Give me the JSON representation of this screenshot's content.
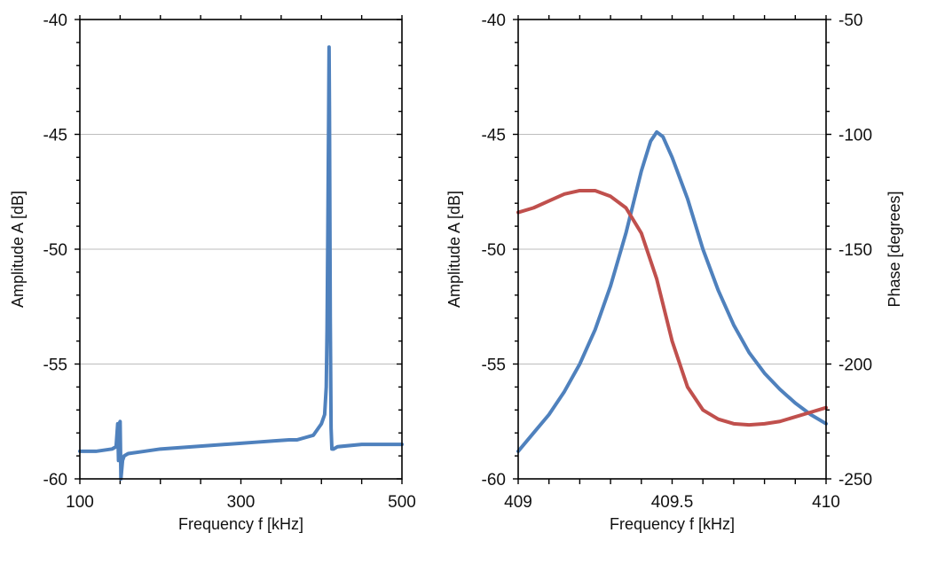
{
  "chart_data": [
    {
      "type": "line",
      "xlabel": "Frequency  f [kHz]",
      "ylabel": "Amplitude  A [dB]",
      "xlim": [
        100,
        500
      ],
      "ylim": [
        -60,
        -40
      ],
      "xticks": [
        100,
        300,
        500
      ],
      "yticks": [
        -60,
        -55,
        -50,
        -45,
        -40
      ],
      "xtick_labels": [
        "100",
        "300",
        "500"
      ],
      "ytick_labels": [
        "-60",
        "-55",
        "-50",
        "-45",
        "-40"
      ],
      "grid": "horizontal",
      "series": [
        {
          "color": "#4f81bd",
          "x": [
            100,
            120,
            140,
            145,
            147,
            148,
            149,
            150,
            151,
            152,
            153,
            155,
            160,
            180,
            200,
            240,
            280,
            300,
            320,
            340,
            360,
            370,
            380,
            390,
            400,
            404,
            406,
            407,
            408,
            409,
            409.5,
            410,
            411,
            412,
            413,
            415,
            420,
            450,
            500
          ],
          "y": [
            -58.8,
            -58.8,
            -58.7,
            -58.6,
            -57.6,
            -59.2,
            -57.6,
            -57.5,
            -60,
            -59.6,
            -59.2,
            -59,
            -58.9,
            -58.8,
            -58.7,
            -58.6,
            -58.5,
            -58.45,
            -58.4,
            -58.35,
            -58.3,
            -58.3,
            -58.2,
            -58.1,
            -57.6,
            -57.2,
            -56,
            -53.5,
            -49,
            -44,
            -41.2,
            -44,
            -53,
            -57.8,
            -58.7,
            -58.7,
            -58.6,
            -58.5,
            -58.5
          ]
        }
      ]
    },
    {
      "type": "line",
      "xlabel": "Frequency  f [kHz]",
      "ylabel": "Amplitude  A [dB]",
      "y2label": "Phase [degrees]",
      "xlim": [
        409,
        410
      ],
      "ylim": [
        -60,
        -40
      ],
      "y2lim": [
        -250,
        -50
      ],
      "xticks": [
        409,
        409.5,
        410
      ],
      "yticks": [
        -60,
        -55,
        -50,
        -45,
        -40
      ],
      "y2ticks": [
        -250,
        -200,
        -150,
        -100,
        -50
      ],
      "xtick_labels": [
        "409",
        "409.5",
        "410"
      ],
      "ytick_labels": [
        "-60",
        "-55",
        "-50",
        "-45",
        "-40"
      ],
      "y2tick_labels": [
        "-250",
        "-200",
        "-150",
        "-100",
        "-50"
      ],
      "grid": "horizontal",
      "series": [
        {
          "axis": "left",
          "color": "#4f81bd",
          "x": [
            409,
            409.05,
            409.1,
            409.15,
            409.2,
            409.25,
            409.3,
            409.35,
            409.4,
            409.43,
            409.45,
            409.47,
            409.5,
            409.55,
            409.6,
            409.65,
            409.7,
            409.75,
            409.8,
            409.85,
            409.9,
            409.95,
            410
          ],
          "y": [
            -58.8,
            -58,
            -57.2,
            -56.2,
            -55,
            -53.5,
            -51.6,
            -49.3,
            -46.6,
            -45.3,
            -44.9,
            -45.1,
            -46,
            -47.8,
            -50,
            -51.8,
            -53.3,
            -54.5,
            -55.4,
            -56.1,
            -56.7,
            -57.2,
            -57.6
          ]
        },
        {
          "axis": "right",
          "color": "#c0504d",
          "x": [
            409,
            409.05,
            409.1,
            409.15,
            409.2,
            409.25,
            409.3,
            409.35,
            409.4,
            409.45,
            409.5,
            409.55,
            409.6,
            409.65,
            409.7,
            409.75,
            409.8,
            409.85,
            409.9,
            409.95,
            410
          ],
          "y": [
            -134,
            -132,
            -129,
            -126,
            -124.5,
            -124.5,
            -127,
            -132,
            -143,
            -163,
            -190,
            -210,
            -220,
            -224,
            -226,
            -226.5,
            -226,
            -225,
            -223,
            -221,
            -219
          ]
        }
      ]
    }
  ]
}
